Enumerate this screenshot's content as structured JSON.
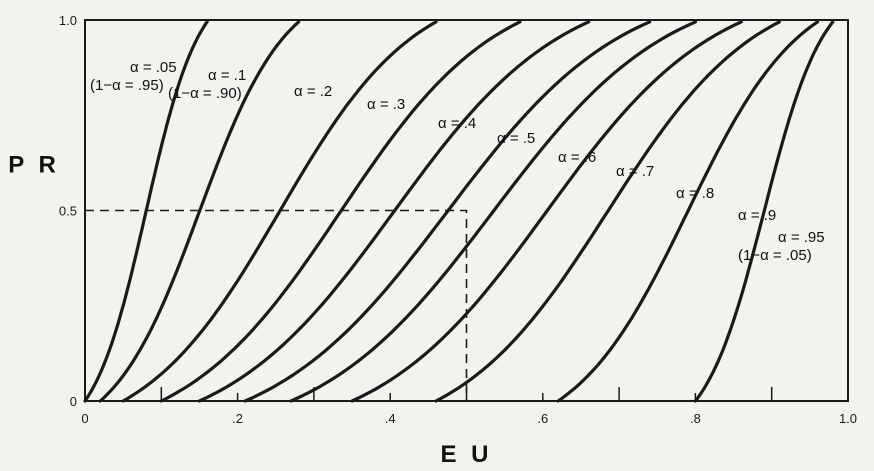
{
  "chart_data": {
    "type": "line",
    "title": "",
    "xlabel": "E U",
    "ylabel": "P R",
    "xlim": [
      0,
      1
    ],
    "ylim": [
      0,
      1
    ],
    "grid": false,
    "legend": "inline curve labels",
    "x_tick_labels": [
      "0",
      ".2",
      ".4",
      ".6",
      ".8",
      "1.0"
    ],
    "y_tick_labels": [
      "0",
      "0.5",
      "1.0"
    ],
    "reference_point": {
      "x": 0.5,
      "y": 0.5
    },
    "series": [
      {
        "name": "α = .05 (1−α = .95)",
        "alpha": 0.05,
        "x_range": [
          0.0,
          0.16
        ],
        "label_lines": [
          "α = .05",
          "(1−α = .95)"
        ]
      },
      {
        "name": "α = .1 (1−α = .90)",
        "alpha": 0.1,
        "x_range": [
          0.02,
          0.28
        ],
        "label_lines": [
          "α = .1",
          "(1−α = .90)"
        ]
      },
      {
        "name": "α = .2",
        "alpha": 0.2,
        "x_range": [
          0.05,
          0.46
        ],
        "label_lines": [
          "α = .2"
        ]
      },
      {
        "name": "α = .3",
        "alpha": 0.3,
        "x_range": [
          0.1,
          0.57
        ],
        "label_lines": [
          "α = .3"
        ]
      },
      {
        "name": "α = .4",
        "alpha": 0.4,
        "x_range": [
          0.15,
          0.66
        ],
        "label_lines": [
          "α = .4"
        ]
      },
      {
        "name": "α = .5",
        "alpha": 0.5,
        "x_range": [
          0.21,
          0.74
        ],
        "label_lines": [
          "α = .5"
        ]
      },
      {
        "name": "α = .6",
        "alpha": 0.6,
        "x_range": [
          0.27,
          0.8
        ],
        "label_lines": [
          "α = .6"
        ]
      },
      {
        "name": "α = .7",
        "alpha": 0.7,
        "x_range": [
          0.35,
          0.86
        ],
        "label_lines": [
          "α = .7"
        ]
      },
      {
        "name": "α = .8",
        "alpha": 0.8,
        "x_range": [
          0.46,
          0.91
        ],
        "label_lines": [
          "α = .8"
        ]
      },
      {
        "name": "α = .9",
        "alpha": 0.9,
        "x_range": [
          0.62,
          0.96
        ],
        "label_lines": [
          "α = .9"
        ]
      },
      {
        "name": "α = .95 (1−α = .05)",
        "alpha": 0.95,
        "x_range": [
          0.8,
          0.98
        ],
        "label_lines": [
          "α = .95",
          "(1−α = .05)"
        ]
      }
    ]
  }
}
